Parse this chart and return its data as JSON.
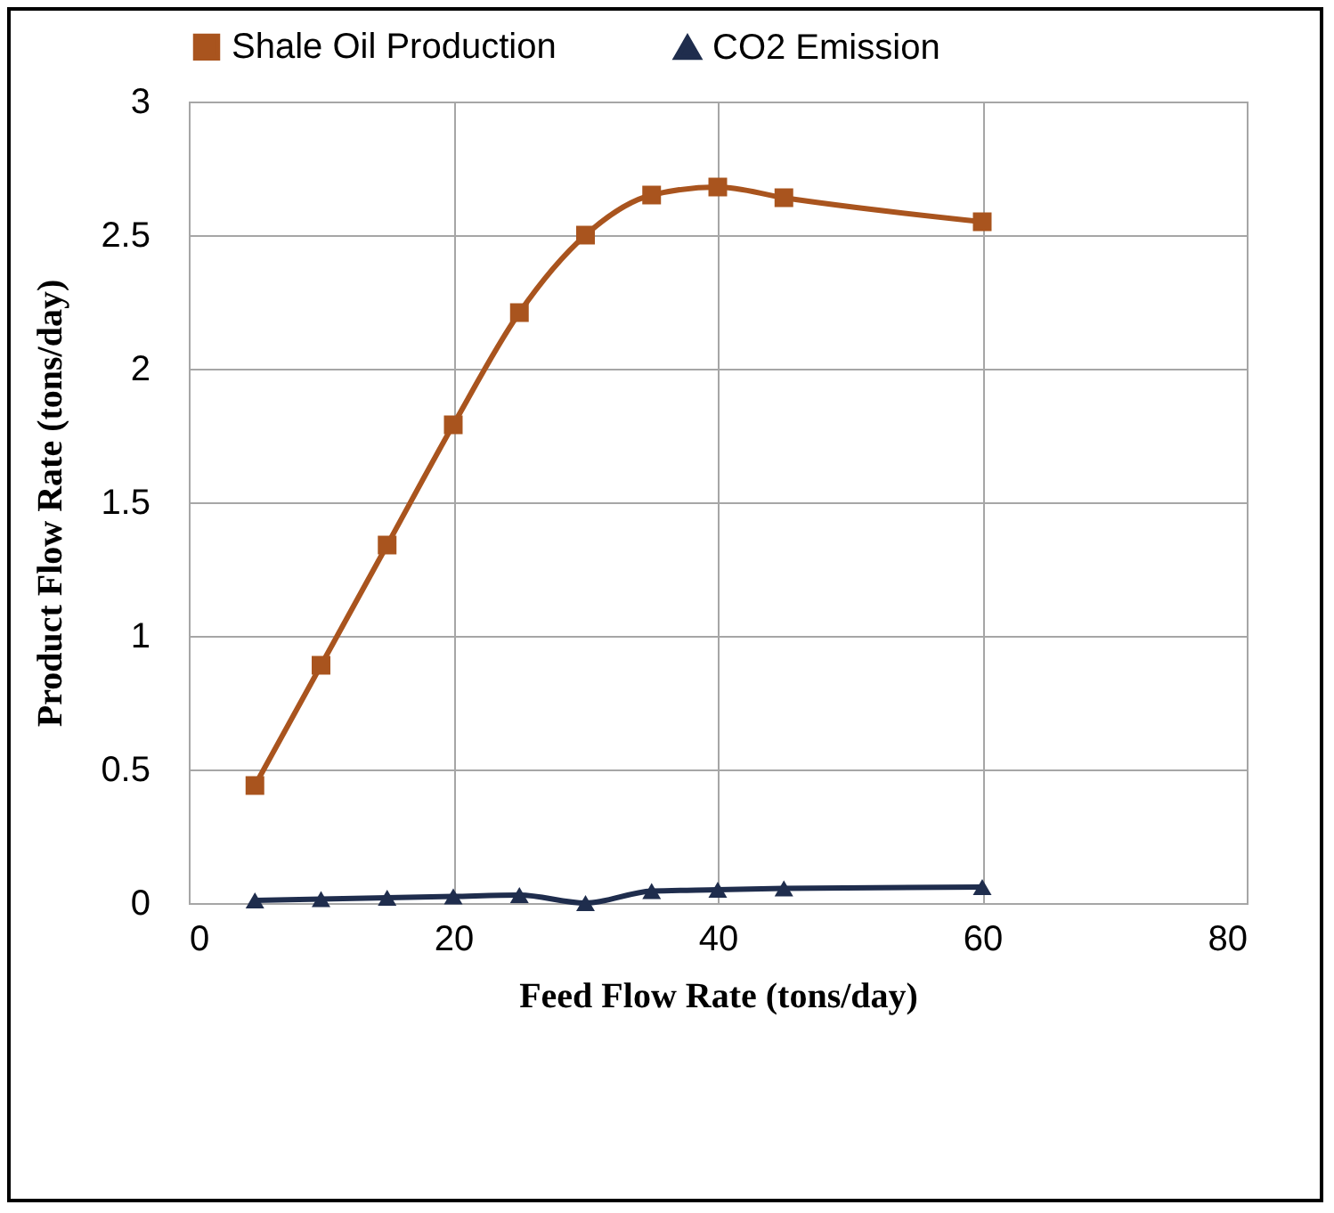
{
  "chart_data": {
    "type": "line",
    "xlabel": "Feed Flow Rate (tons/day)",
    "ylabel": "Product Flow Rate (tons/day)",
    "x": [
      5,
      10,
      15,
      20,
      25,
      30,
      35,
      40,
      45,
      60
    ],
    "series": [
      {
        "name": "Shale Oil Production",
        "color": "#a9541e",
        "marker": "square",
        "values": [
          0.44,
          0.89,
          1.34,
          1.79,
          2.21,
          2.5,
          2.65,
          2.68,
          2.64,
          2.55
        ]
      },
      {
        "name": "CO2 Emission",
        "color": "#1f2d4d",
        "marker": "triangle",
        "values": [
          0.01,
          0.015,
          0.02,
          0.025,
          0.03,
          0.0,
          0.045,
          0.05,
          0.055,
          0.06
        ]
      }
    ],
    "xlim": [
      0,
      80
    ],
    "xticks": [
      0,
      20,
      40,
      60,
      80
    ],
    "ylim": [
      0,
      3
    ],
    "yticks": [
      0,
      0.5,
      1,
      1.5,
      2,
      2.5,
      3
    ],
    "grid": true,
    "legend": "top",
    "line_style": "solid"
  }
}
